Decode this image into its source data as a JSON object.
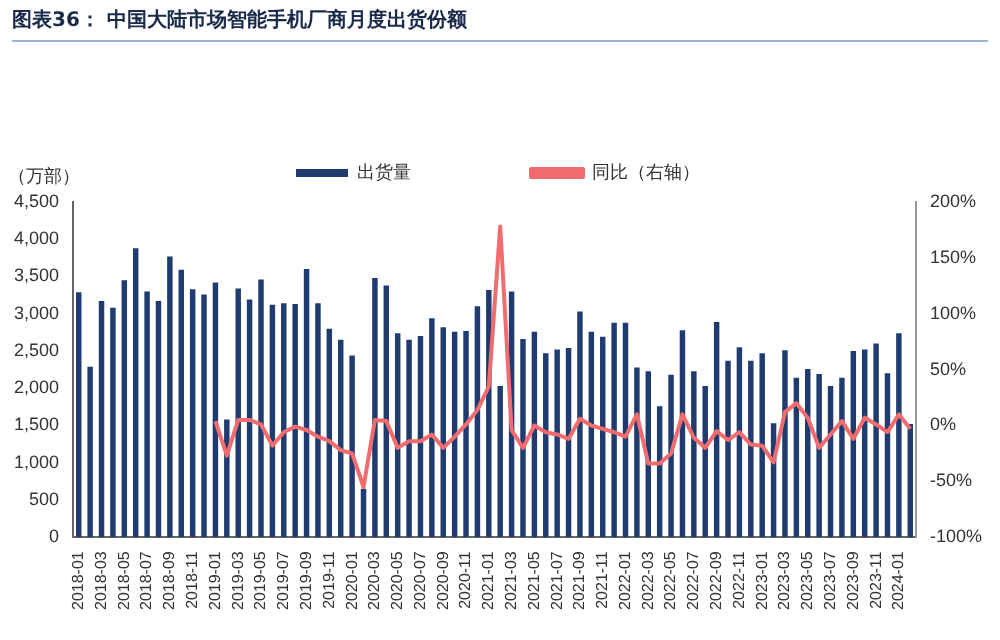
{
  "chart_data": {
    "type": "bar",
    "title": "图表36：  中国大陆市场智能手机厂商月度出货份额",
    "ylabel": "（万部）",
    "categories": [
      "2018-01",
      null,
      "2018-03",
      null,
      "2018-05",
      null,
      "2018-07",
      null,
      "2018-09",
      null,
      "2018-11",
      null,
      "2019-01",
      null,
      "2019-03",
      null,
      "2019-05",
      null,
      "2019-07",
      null,
      "2019-09",
      null,
      "2019-11",
      null,
      "2020-01",
      null,
      "2020-03",
      null,
      "2020-05",
      null,
      "2020-07",
      null,
      "2020-09",
      null,
      "2020-11",
      null,
      "2021-01",
      null,
      "2021-03",
      null,
      "2021-05",
      null,
      "2021-07",
      null,
      "2021-09",
      null,
      "2021-11",
      null,
      "2022-01",
      null,
      "2022-03",
      null,
      "2022-05",
      null,
      "2022-07",
      null,
      "2022-09",
      null,
      "2022-11",
      null,
      "2023-01",
      null,
      "2023-03",
      null,
      "2023-05",
      null,
      "2023-07",
      null,
      "2023-09",
      null,
      "2023-11",
      null,
      "2024-01",
      null
    ],
    "series": [
      {
        "name": "出货量",
        "color": "#1f3b70",
        "values": [
          3290,
          2290,
          3170,
          3080,
          3450,
          3880,
          3300,
          3170,
          3770,
          3590,
          3330,
          3260,
          3420,
          1580,
          3340,
          3190,
          3460,
          3120,
          3140,
          3130,
          3600,
          3140,
          2800,
          2650,
          2440,
          650,
          3480,
          3380,
          2740,
          2650,
          2700,
          2940,
          2820,
          2760,
          2770,
          3100,
          3320,
          2030,
          3300,
          2660,
          2760,
          2470,
          2520,
          2540,
          3030,
          2760,
          2690,
          2880,
          2880,
          2280,
          2230,
          1760,
          2180,
          2780,
          2230,
          2030,
          2890,
          2370,
          2550,
          2370,
          2470,
          1530,
          2510,
          2140,
          2260,
          2190,
          2030,
          2140,
          2500,
          2520,
          2600,
          2200,
          2740,
          1520
        ]
      },
      {
        "name": "同比（右轴）",
        "type": "line",
        "axis": "y2",
        "color": "#f06c6e",
        "values": [
          null,
          null,
          null,
          null,
          null,
          null,
          null,
          null,
          null,
          null,
          null,
          null,
          4,
          -27,
          5,
          5,
          1,
          -18,
          -6,
          -1,
          -4,
          -10,
          -14,
          -22,
          -25,
          -55,
          5,
          4,
          -20,
          -14,
          -14,
          -8,
          -20,
          -10,
          1,
          14,
          35,
          178,
          -4,
          -20,
          0,
          -6,
          -8,
          -12,
          6,
          0,
          -3,
          -6,
          -10,
          10,
          -34,
          -34,
          -25,
          10,
          -11,
          -20,
          -5,
          -13,
          -6,
          -17,
          -18,
          -33,
          12,
          20,
          7,
          -20,
          -8,
          4,
          -12,
          7,
          1,
          -6,
          10,
          -3
        ]
      }
    ],
    "ylim": [
      0,
      4500
    ],
    "yticks": [
      0,
      500,
      {
        "value": 1000,
        "label": "1,000"
      },
      {
        "value": 1500,
        "label": "1,500"
      },
      {
        "value": 2000,
        "label": "2,000"
      },
      {
        "value": 2500,
        "label": "2,500"
      },
      {
        "value": 3000,
        "label": "3,000"
      },
      {
        "value": 3500,
        "label": "3,500"
      },
      {
        "value": 4000,
        "label": "4,000"
      },
      {
        "value": 4500,
        "label": "4,500"
      }
    ],
    "y2lim": [
      -100,
      200
    ],
    "y2ticks": [
      {
        "value": -100,
        "label": "-100%"
      },
      {
        "value": -50,
        "label": "-50%"
      },
      {
        "value": 0,
        "label": "0%"
      },
      {
        "value": 50,
        "label": "50%"
      },
      {
        "value": 100,
        "label": "100%"
      },
      {
        "value": 150,
        "label": "150%"
      },
      {
        "value": 200,
        "label": "200%"
      }
    ],
    "grid": false,
    "legend": "top",
    "marker": "none"
  }
}
